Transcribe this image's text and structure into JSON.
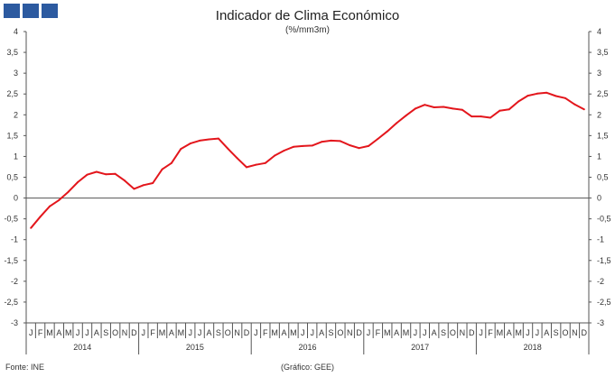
{
  "header": {
    "title": "Indicador de Clima Económico",
    "unit": "(%/mm3m)"
  },
  "footer": {
    "source": "Fonte: INE",
    "credit": "(Gráfico: GEE)"
  },
  "chart_data": {
    "type": "line",
    "title": "Indicador de Clima Económico",
    "subtitle": "(%/mm3m)",
    "ylim": [
      -3,
      4
    ],
    "yticks": [
      "4",
      "3,5",
      "3",
      "2,5",
      "2",
      "1,5",
      "1",
      "0,5",
      "0",
      "-0,5",
      "-1",
      "-1,5",
      "-2",
      "-2,5",
      "-3"
    ],
    "month_labels": [
      "J",
      "F",
      "M",
      "A",
      "M",
      "J",
      "J",
      "A",
      "S",
      "O",
      "N",
      "D"
    ],
    "years": [
      "2014",
      "2015",
      "2016",
      "2017",
      "2018"
    ],
    "grid": false,
    "color": "#e3161c",
    "x": [
      "2014-01",
      "2014-02",
      "2014-03",
      "2014-04",
      "2014-05",
      "2014-06",
      "2014-07",
      "2014-08",
      "2014-09",
      "2014-10",
      "2014-11",
      "2014-12",
      "2015-01",
      "2015-02",
      "2015-03",
      "2015-04",
      "2015-05",
      "2015-06",
      "2015-07",
      "2015-08",
      "2015-09",
      "2015-10",
      "2015-11",
      "2015-12",
      "2016-01",
      "2016-02",
      "2016-03",
      "2016-04",
      "2016-05",
      "2016-06",
      "2016-07",
      "2016-08",
      "2016-09",
      "2016-10",
      "2016-11",
      "2016-12",
      "2017-01",
      "2017-02",
      "2017-03",
      "2017-04",
      "2017-05",
      "2017-06",
      "2017-07",
      "2017-08",
      "2017-09",
      "2017-10",
      "2017-11",
      "2017-12",
      "2018-01",
      "2018-02",
      "2018-03",
      "2018-04",
      "2018-05",
      "2018-06",
      "2018-07",
      "2018-08",
      "2018-09",
      "2018-10",
      "2018-11",
      "2018-12"
    ],
    "values": [
      -0.72,
      -0.45,
      -0.2,
      -0.05,
      0.15,
      0.38,
      0.56,
      0.63,
      0.57,
      0.58,
      0.42,
      0.22,
      0.31,
      0.36,
      0.69,
      0.84,
      1.18,
      1.31,
      1.38,
      1.41,
      1.43,
      1.19,
      0.96,
      0.74,
      0.8,
      0.84,
      1.02,
      1.14,
      1.23,
      1.25,
      1.26,
      1.35,
      1.38,
      1.37,
      1.27,
      1.2,
      1.25,
      1.42,
      1.6,
      1.8,
      1.98,
      2.15,
      2.24,
      2.18,
      2.19,
      2.15,
      2.12,
      1.96,
      1.96,
      1.93,
      2.1,
      2.13,
      2.32,
      2.46,
      2.51,
      2.53,
      2.45,
      2.4,
      2.25,
      2.13
    ]
  }
}
